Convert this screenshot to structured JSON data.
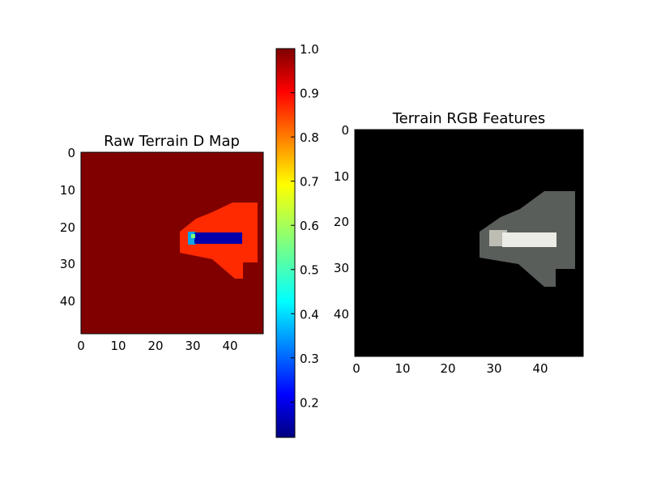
{
  "chart_data": [
    {
      "type": "heatmap",
      "title": "Raw Terrain D Map",
      "colormap": "jet",
      "grid_size": [
        50,
        50
      ],
      "xlim": [
        0,
        49
      ],
      "ylim": [
        49,
        0
      ],
      "x_ticks": [
        "0",
        "10",
        "20",
        "30",
        "40"
      ],
      "y_ticks": [
        "0",
        "10",
        "20",
        "30",
        "40"
      ],
      "background_value": 0.98,
      "regions": [
        {
          "name": "outer-shape",
          "value": 0.9
        },
        {
          "name": "inner-bar",
          "value": 0.12
        },
        {
          "name": "bar-edge",
          "value": 0.35
        }
      ]
    },
    {
      "type": "colorbar",
      "vmin": 0.12,
      "vmax": 1.0,
      "ticks": [
        "0.2",
        "0.3",
        "0.4",
        "0.5",
        "0.6",
        "0.7",
        "0.8",
        "0.9",
        "1.0"
      ],
      "tick_values": [
        0.2,
        0.3,
        0.4,
        0.5,
        0.6,
        0.7,
        0.8,
        0.9,
        1.0
      ]
    },
    {
      "type": "heatmap",
      "title": "Terrain RGB Features",
      "colormap": "rgb",
      "grid_size": [
        50,
        50
      ],
      "xlim": [
        0,
        49
      ],
      "ylim": [
        49,
        0
      ],
      "x_ticks": [
        "0",
        "10",
        "20",
        "30",
        "40"
      ],
      "y_ticks": [
        "0",
        "10",
        "20",
        "30",
        "40"
      ],
      "background_color": "#000000",
      "shape_color": "#5a5e5a",
      "bar_color": "#ecece6"
    }
  ]
}
